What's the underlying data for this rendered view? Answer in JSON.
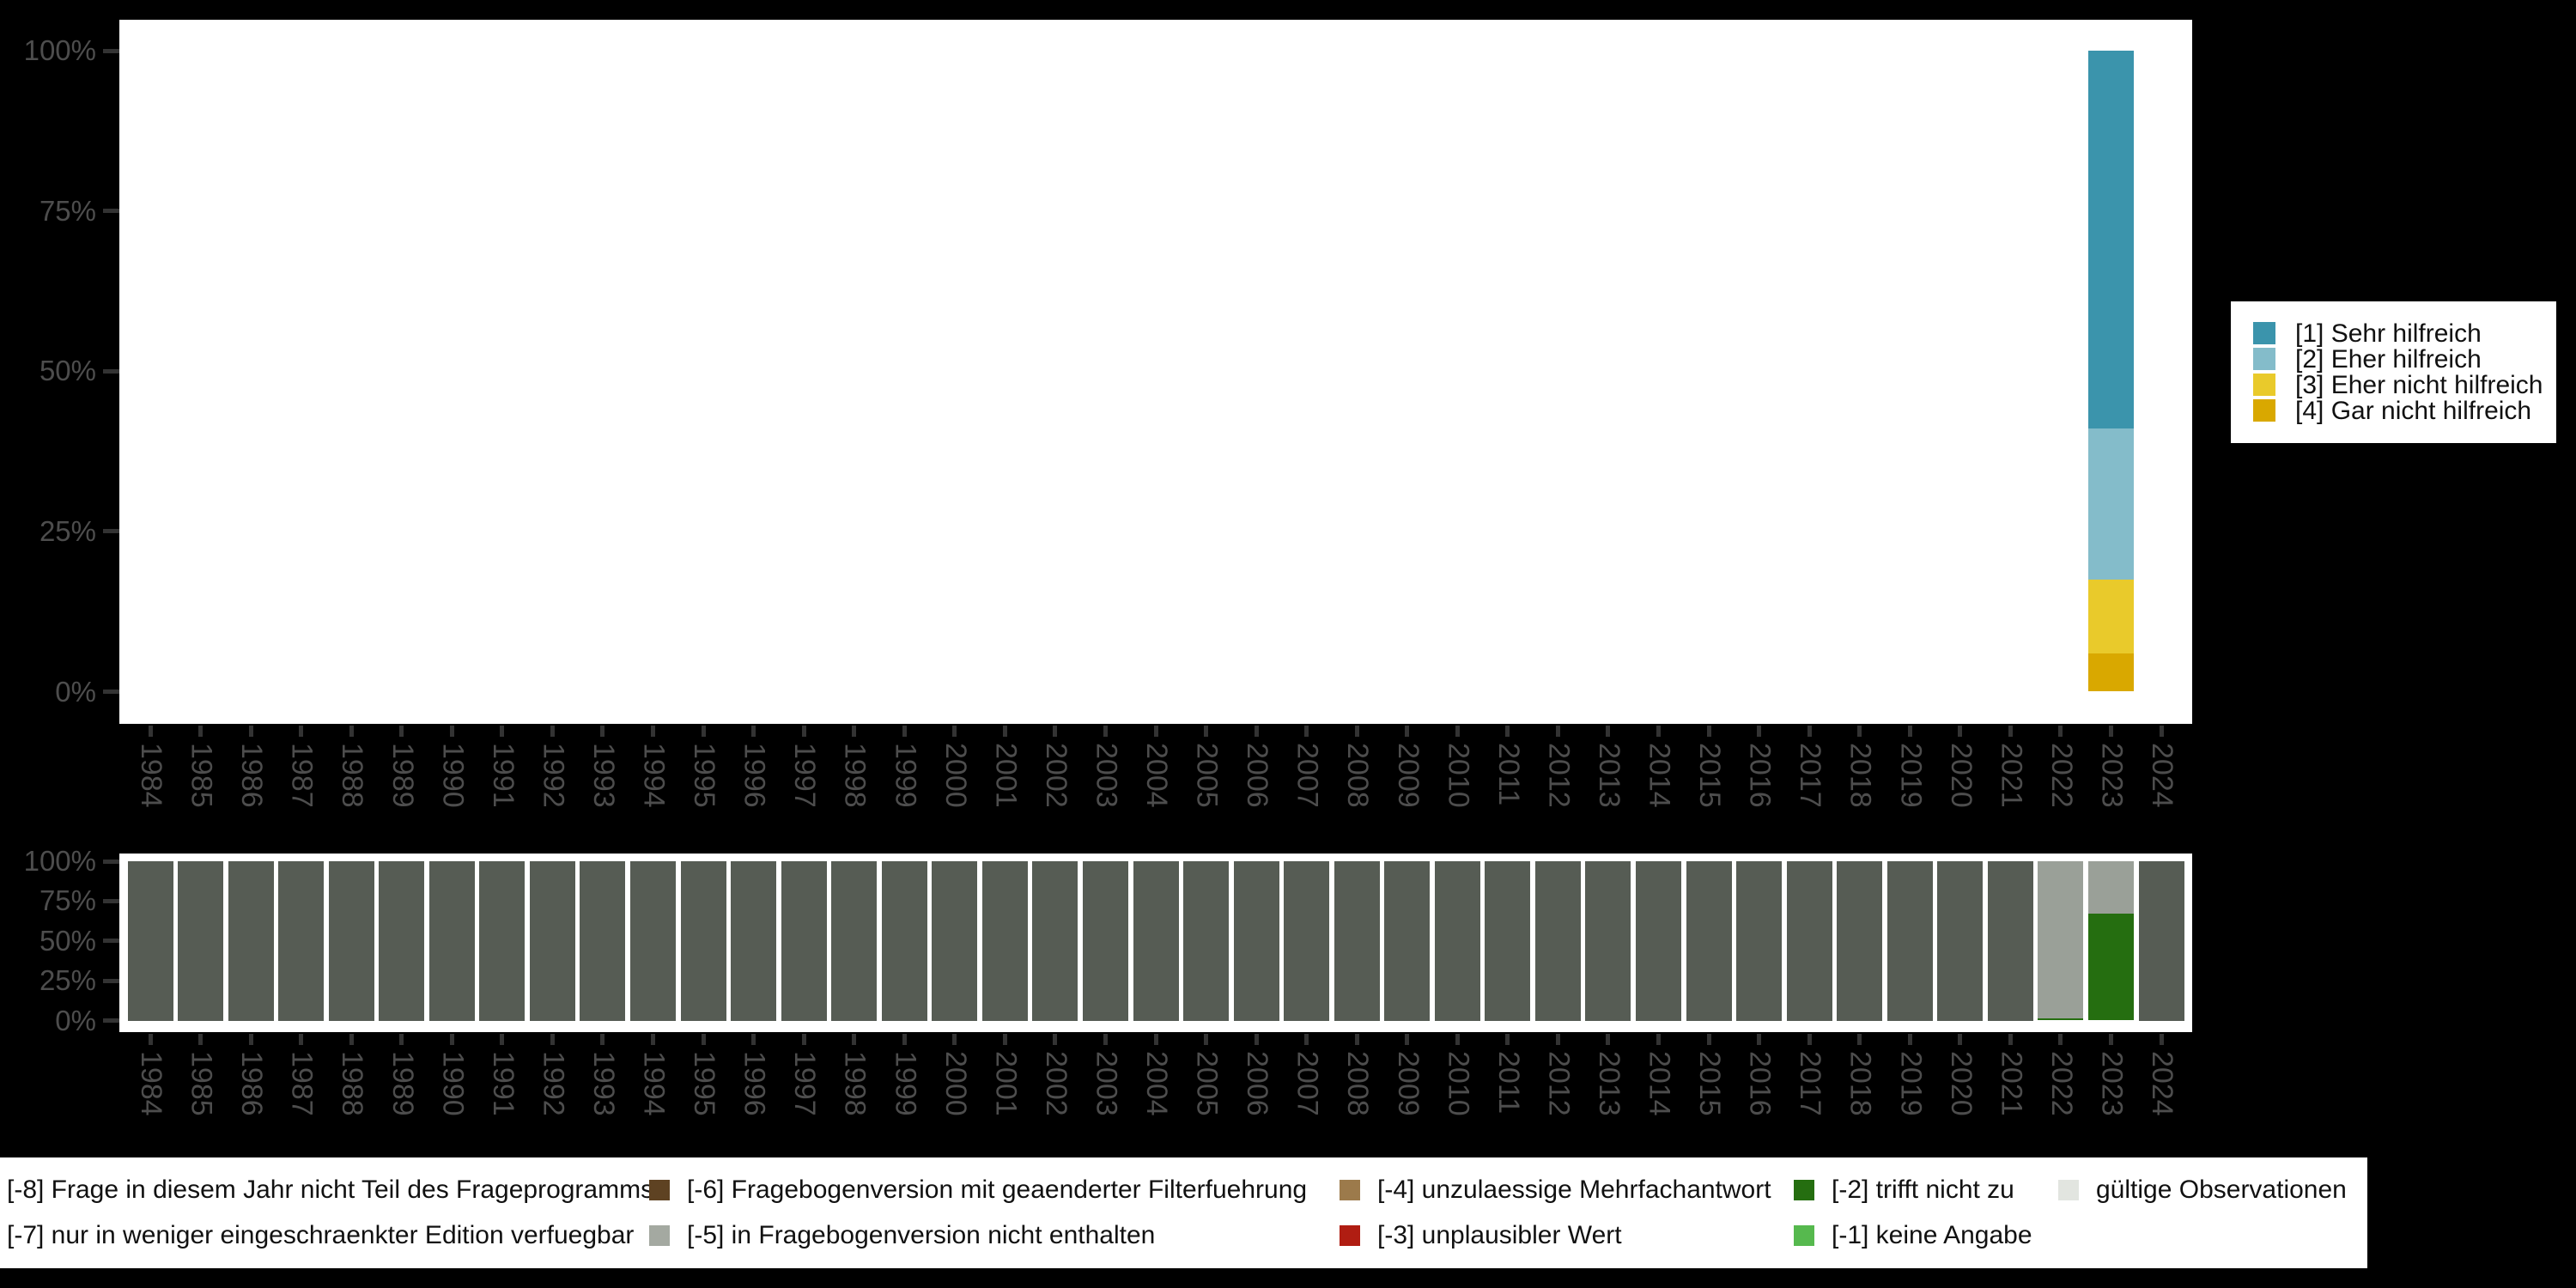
{
  "canvas": {
    "background": "#000000"
  },
  "axis_style": {
    "tick_color": "#333333",
    "label_color": "#4d4d4d"
  },
  "y_tick_labels": [
    "100%",
    "75%",
    "50%",
    "25%",
    "0%"
  ],
  "years": [
    "1984",
    "1985",
    "1986",
    "1987",
    "1988",
    "1989",
    "1990",
    "1991",
    "1992",
    "1993",
    "1994",
    "1995",
    "1996",
    "1997",
    "1998",
    "1999",
    "2000",
    "2001",
    "2002",
    "2003",
    "2004",
    "2005",
    "2006",
    "2007",
    "2008",
    "2009",
    "2010",
    "2011",
    "2012",
    "2013",
    "2014",
    "2015",
    "2016",
    "2017",
    "2018",
    "2019",
    "2020",
    "2021",
    "2022",
    "2023",
    "2024"
  ],
  "chart_data": [
    {
      "id": "distribution_chart",
      "type": "bar",
      "stacked": true,
      "percent": true,
      "title": "",
      "xlabel": "",
      "ylabel": "",
      "ylim": [
        0,
        100
      ],
      "y_ticks": [
        "0%",
        "25%",
        "50%",
        "75%",
        "100%"
      ],
      "categories": [
        "1984",
        "1985",
        "1986",
        "1987",
        "1988",
        "1989",
        "1990",
        "1991",
        "1992",
        "1993",
        "1994",
        "1995",
        "1996",
        "1997",
        "1998",
        "1999",
        "2000",
        "2001",
        "2002",
        "2003",
        "2004",
        "2005",
        "2006",
        "2007",
        "2008",
        "2009",
        "2010",
        "2011",
        "2012",
        "2013",
        "2014",
        "2015",
        "2016",
        "2017",
        "2018",
        "2019",
        "2020",
        "2021",
        "2022",
        "2023",
        "2024"
      ],
      "legend_position": "right",
      "grid": false,
      "series": [
        {
          "name": "[1] Sehr hilfreich",
          "color": "#3b94ac",
          "values": {
            "2023": 59.0
          }
        },
        {
          "name": "[2] Eher hilfreich",
          "color": "#84bcca",
          "values": {
            "2023": 23.5
          }
        },
        {
          "name": "[3] Eher nicht hilfreich",
          "color": "#e9ca2b",
          "values": {
            "2023": 11.5
          }
        },
        {
          "name": "[4] Gar nicht hilfreich",
          "color": "#d9a800",
          "values": {
            "2023": 6.0
          }
        }
      ],
      "stack_order_bottom_to_top": [
        3,
        2,
        1,
        0
      ]
    },
    {
      "id": "missings_chart",
      "type": "bar",
      "stacked": true,
      "percent": true,
      "title": "",
      "xlabel": "",
      "ylabel": "",
      "ylim": [
        0,
        100
      ],
      "y_ticks": [
        "0%",
        "25%",
        "50%",
        "75%",
        "100%"
      ],
      "categories": [
        "1984",
        "1985",
        "1986",
        "1987",
        "1988",
        "1989",
        "1990",
        "1991",
        "1992",
        "1993",
        "1994",
        "1995",
        "1996",
        "1997",
        "1998",
        "1999",
        "2000",
        "2001",
        "2002",
        "2003",
        "2004",
        "2005",
        "2006",
        "2007",
        "2008",
        "2009",
        "2010",
        "2011",
        "2012",
        "2013",
        "2014",
        "2015",
        "2016",
        "2017",
        "2018",
        "2019",
        "2020",
        "2021",
        "2022",
        "2023",
        "2024"
      ],
      "legend_position": "bottom",
      "grid": false,
      "series": [
        {
          "name": "[-8] Frage in diesem Jahr nicht Teil des Frageprogramms",
          "color": "#565c54",
          "values": {
            "1984": 100,
            "1985": 100,
            "1986": 100,
            "1987": 100,
            "1988": 100,
            "1989": 100,
            "1990": 100,
            "1991": 100,
            "1992": 100,
            "1993": 100,
            "1994": 100,
            "1995": 100,
            "1996": 100,
            "1997": 100,
            "1998": 100,
            "1999": 100,
            "2000": 100,
            "2001": 100,
            "2002": 100,
            "2003": 100,
            "2004": 100,
            "2005": 100,
            "2006": 100,
            "2007": 100,
            "2008": 100,
            "2009": 100,
            "2010": 100,
            "2011": 100,
            "2012": 100,
            "2013": 100,
            "2014": 100,
            "2015": 100,
            "2016": 100,
            "2017": 100,
            "2018": 100,
            "2019": 100,
            "2020": 100,
            "2021": 100,
            "2024": 100
          }
        },
        {
          "name": "[-5] in Fragebogenversion nicht enthalten",
          "color": "#9aa098",
          "values": {
            "2022": 98.5,
            "2023": 33.0
          }
        },
        {
          "name": "[-2] trifft nicht zu",
          "color": "#256e10",
          "values": {
            "2022": 1.5,
            "2023": 67.0
          }
        }
      ],
      "stack_order_bottom_to_top": [
        2,
        1,
        0
      ]
    }
  ],
  "legend_top": {
    "items": [
      {
        "label": "[1] Sehr hilfreich",
        "color": "#3b94ac"
      },
      {
        "label": "[2] Eher hilfreich",
        "color": "#84bcca"
      },
      {
        "label": "[3] Eher nicht hilfreich",
        "color": "#e9ca2b"
      },
      {
        "label": "[4] Gar nicht hilfreich",
        "color": "#d9a800"
      }
    ]
  },
  "legend_bottom": {
    "rows": [
      [
        {
          "label": "[-8] Frage in diesem Jahr nicht Teil des Frageprogramms",
          "swatch": null
        },
        {
          "label": "[-6] Fragebogenversion mit geaenderter Filterfuehrung",
          "swatch": "#5e4222"
        },
        {
          "label": "[-4] unzulaessige Mehrfachantwort",
          "swatch": "#9c7a4b"
        },
        {
          "label": "[-2] trifft nicht zu",
          "swatch": "#256e10"
        },
        {
          "label": "gültige Observationen",
          "swatch": "#e2e5e0"
        }
      ],
      [
        {
          "label": "[-7] nur in weniger eingeschraenkter Edition verfuegbar",
          "swatch": null
        },
        {
          "label": "[-5] in Fragebogenversion nicht enthalten",
          "swatch": "#a4a9a1"
        },
        {
          "label": "[-3] unplausibler Wert",
          "swatch": "#b01d12"
        },
        {
          "label": "[-1] keine Angabe",
          "swatch": "#56b94e"
        }
      ]
    ]
  }
}
